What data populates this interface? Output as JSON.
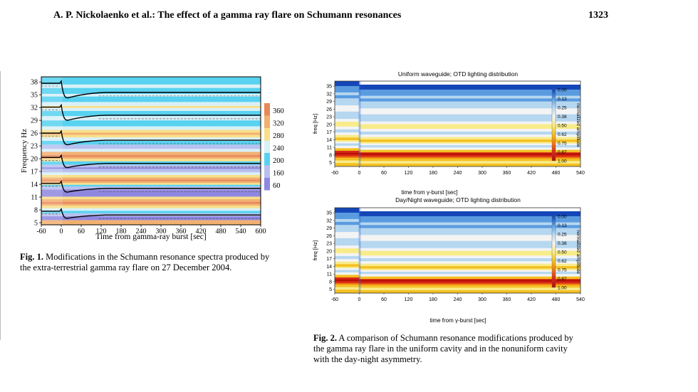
{
  "header": {
    "title": "A. P. Nickolaenko et al.: The effect of a gamma ray flare on Schumann resonances",
    "page_number": "1323"
  },
  "fig1": {
    "ylabel": "Frequency  Hz",
    "xlabel": "Time  from gamma-ray burst [sec]",
    "yticks": [
      "38",
      "35",
      "32",
      "29",
      "26",
      "23",
      "20",
      "17",
      "14",
      "11",
      "8",
      "5"
    ],
    "xticks": [
      "-60",
      "0",
      "60",
      "120",
      "180",
      "240",
      "300",
      "360",
      "420",
      "480",
      "540",
      "600"
    ],
    "colorbar_ticks": [
      "360",
      "320",
      "280",
      "240",
      "200",
      "160",
      "60"
    ],
    "colors": [
      "#e8885a",
      "#f2b070",
      "#f8df8a",
      "#d8f0f8",
      "#58d2f0",
      "#b8c0f0",
      "#8f88e0"
    ],
    "caption_label": "Fig. 1.",
    "caption_text": " Modifications in the Schumann resonance spectra produced by the extra-terrestrial gamma ray flare on 27 December 2004."
  },
  "fig2": {
    "panels": [
      {
        "title": "Uniform waveguide; OTD lighting distribution"
      },
      {
        "title": "Day/Night waveguide; OTD lighting distribution"
      }
    ],
    "ylabel": "freq [Hz]",
    "yticks": [
      "35",
      "32",
      "29",
      "26",
      "23",
      "20",
      "17",
      "14",
      "11",
      "8",
      "5"
    ],
    "xticks": [
      "-60",
      "0",
      "60",
      "120",
      "180",
      "240",
      "300",
      "360",
      "420",
      "480",
      "540"
    ],
    "xlabel_top": "time from γ-burst [sec]",
    "xlabel_bottom": "time from γ-burst [sec]",
    "colorbar_ticks": [
      "0.00",
      "0.13",
      "0.25",
      "0.38",
      "0.50",
      "0.62",
      "0.75",
      "0.87",
      "1.00"
    ],
    "colorbar_label": "normalized amplitude",
    "colorscale": [
      "#1446b8",
      "#5a9be0",
      "#b6d7f0",
      "#f4f4f4",
      "#f8ec8a",
      "#f4c022",
      "#f07c14",
      "#d82814",
      "#b40e08"
    ],
    "caption_label": "Fig. 2.",
    "caption_text": " A comparison of Schumann resonance modifications produced by the gamma ray flare in the uniform cavity and in the nonuniform cavity with the day-night asymmetry."
  }
}
